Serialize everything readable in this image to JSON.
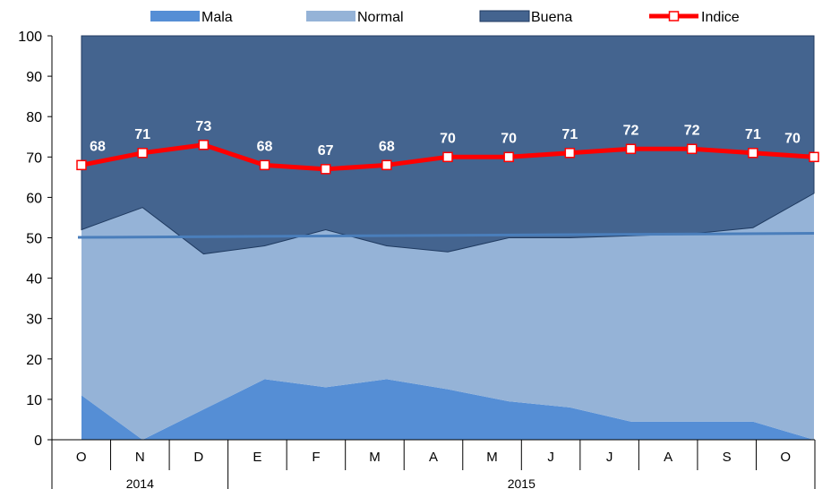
{
  "chart_data": {
    "type": "area",
    "categories": [
      "O",
      "N",
      "D",
      "E",
      "F",
      "M",
      "A",
      "M",
      "J",
      "J",
      "A",
      "S",
      "O"
    ],
    "year_groups": [
      {
        "label": "2014",
        "start": 0,
        "end": 2
      },
      {
        "label": "2015",
        "start": 3,
        "end": 12
      }
    ],
    "series": [
      {
        "name": "Mala",
        "kind": "area-stacked",
        "color": "#558ed5",
        "values": [
          11,
          0,
          7.5,
          15,
          13,
          15,
          12.5,
          9.5,
          8,
          4.5,
          4.5,
          4.5,
          0
        ]
      },
      {
        "name": "Normal",
        "kind": "area-stacked",
        "color": "#95b3d7",
        "values": [
          41,
          57.5,
          38.5,
          33,
          39,
          33,
          34,
          40.5,
          42,
          46,
          46.5,
          48,
          61
        ]
      },
      {
        "name": "Buena",
        "kind": "area-stacked",
        "color": "#44648f",
        "values": [
          48,
          42.5,
          54,
          52,
          48,
          52,
          53.5,
          50,
          50,
          49.5,
          49,
          47.5,
          39
        ]
      },
      {
        "name": "Indice",
        "kind": "line",
        "color": "#ff0000",
        "values": [
          68,
          71,
          73,
          68,
          67,
          68,
          70,
          70,
          71,
          72,
          72,
          71,
          70
        ]
      }
    ],
    "trendline": {
      "from": 50.1,
      "to": 51.1,
      "color": "#4a7ebb"
    },
    "ylim": [
      0,
      100
    ],
    "yticks": [
      0,
      10,
      20,
      30,
      40,
      50,
      60,
      70,
      80,
      90,
      100
    ],
    "grid": false,
    "legend": "top",
    "title": "",
    "xlabel": "",
    "ylabel": ""
  }
}
